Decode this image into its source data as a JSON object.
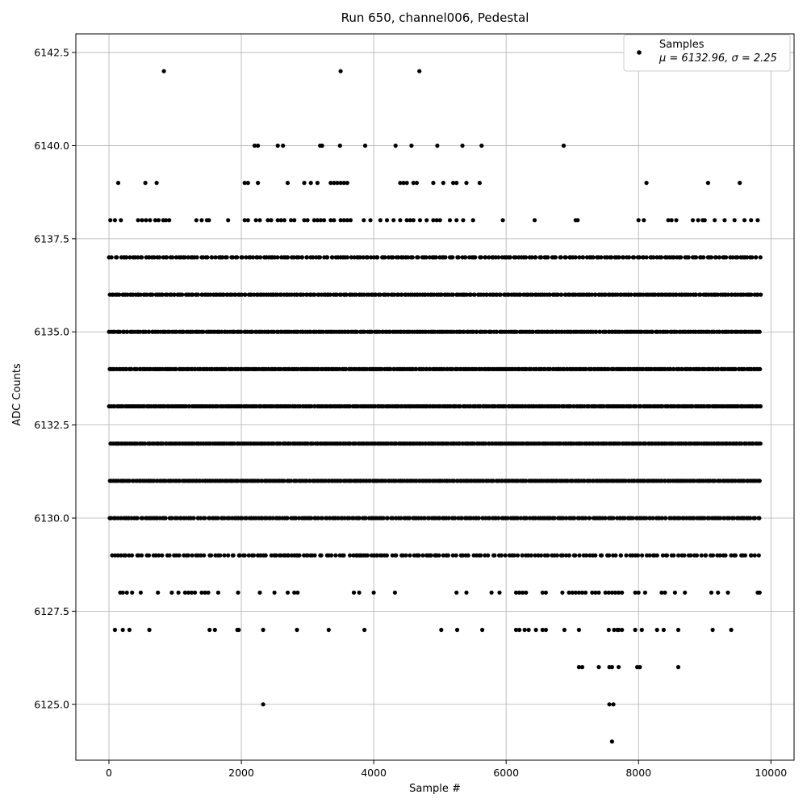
{
  "chart_data": {
    "type": "scatter",
    "title": "Run 650, channel006, Pedestal",
    "xlabel": "Sample #",
    "ylabel": "ADC Counts",
    "xlim": [
      -500,
      10350
    ],
    "ylim": [
      6123.5,
      6143.0
    ],
    "x_ticks": [
      0,
      2000,
      4000,
      6000,
      8000,
      10000
    ],
    "x_tick_labels": [
      "0",
      "2000",
      "4000",
      "6000",
      "8000",
      "10000"
    ],
    "y_ticks": [
      6125.0,
      6127.5,
      6130.0,
      6132.5,
      6135.0,
      6137.5,
      6140.0,
      6142.5
    ],
    "y_tick_labels": [
      "6125.0",
      "6127.5",
      "6130.0",
      "6132.5",
      "6135.0",
      "6137.5",
      "6140.0",
      "6142.5"
    ],
    "grid": true,
    "legend": {
      "placement": "top-right",
      "entries": [
        {
          "label": "Samples",
          "stat_line": "μ = 6132.96, σ = 2.25"
        }
      ]
    },
    "marker_color": "#000000",
    "stats": {
      "mean": 6132.96,
      "sigma": 2.25
    },
    "series": [
      {
        "name": "Samples",
        "x_range": [
          0,
          9850
        ],
        "levels": [
          {
            "y": 6137,
            "count": 260
          },
          {
            "y": 6136,
            "count": 330
          },
          {
            "y": 6135,
            "count": 360
          },
          {
            "y": 6134,
            "count": 380
          },
          {
            "y": 6133,
            "count": 390
          },
          {
            "y": 6132,
            "count": 400
          },
          {
            "y": 6131,
            "count": 380
          },
          {
            "y": 6130,
            "count": 300
          },
          {
            "y": 6129,
            "count": 200
          }
        ],
        "points": [
          [
            830,
            6142
          ],
          [
            3500,
            6142
          ],
          [
            4690,
            6142
          ],
          [
            2200,
            6140
          ],
          [
            2250,
            6140
          ],
          [
            2550,
            6140
          ],
          [
            2630,
            6140
          ],
          [
            3190,
            6140
          ],
          [
            3220,
            6140
          ],
          [
            3490,
            6140
          ],
          [
            3870,
            6140
          ],
          [
            4330,
            6140
          ],
          [
            4570,
            6140
          ],
          [
            4960,
            6140
          ],
          [
            5340,
            6140
          ],
          [
            5630,
            6140
          ],
          [
            6870,
            6140
          ],
          [
            140,
            6139
          ],
          [
            550,
            6139
          ],
          [
            720,
            6139
          ],
          [
            2050,
            6139
          ],
          [
            2100,
            6139
          ],
          [
            2250,
            6139
          ],
          [
            2700,
            6139
          ],
          [
            2950,
            6139
          ],
          [
            3050,
            6139
          ],
          [
            3150,
            6139
          ],
          [
            3350,
            6139
          ],
          [
            3400,
            6139
          ],
          [
            3450,
            6139
          ],
          [
            3500,
            6139
          ],
          [
            3550,
            6139
          ],
          [
            3600,
            6139
          ],
          [
            4400,
            6139
          ],
          [
            4450,
            6139
          ],
          [
            4500,
            6139
          ],
          [
            4600,
            6139
          ],
          [
            4650,
            6139
          ],
          [
            4900,
            6139
          ],
          [
            5050,
            6139
          ],
          [
            5200,
            6139
          ],
          [
            5250,
            6139
          ],
          [
            5400,
            6139
          ],
          [
            5600,
            6139
          ],
          [
            8120,
            6139
          ],
          [
            9050,
            6139
          ],
          [
            9530,
            6139
          ],
          [
            20,
            6138
          ],
          [
            90,
            6138
          ],
          [
            180,
            6138
          ],
          [
            440,
            6138
          ],
          [
            500,
            6138
          ],
          [
            560,
            6138
          ],
          [
            620,
            6138
          ],
          [
            700,
            6138
          ],
          [
            750,
            6138
          ],
          [
            820,
            6138
          ],
          [
            860,
            6138
          ],
          [
            910,
            6138
          ],
          [
            1320,
            6138
          ],
          [
            1400,
            6138
          ],
          [
            1480,
            6138
          ],
          [
            1510,
            6138
          ],
          [
            1800,
            6138
          ],
          [
            2050,
            6138
          ],
          [
            2100,
            6138
          ],
          [
            2220,
            6138
          ],
          [
            2280,
            6138
          ],
          [
            2400,
            6138
          ],
          [
            2450,
            6138
          ],
          [
            2550,
            6138
          ],
          [
            2600,
            6138
          ],
          [
            2650,
            6138
          ],
          [
            2750,
            6138
          ],
          [
            2800,
            6138
          ],
          [
            2950,
            6138
          ],
          [
            3000,
            6138
          ],
          [
            3100,
            6138
          ],
          [
            3150,
            6138
          ],
          [
            3200,
            6138
          ],
          [
            3250,
            6138
          ],
          [
            3350,
            6138
          ],
          [
            3400,
            6138
          ],
          [
            3500,
            6138
          ],
          [
            3550,
            6138
          ],
          [
            3600,
            6138
          ],
          [
            3650,
            6138
          ],
          [
            3850,
            6138
          ],
          [
            3950,
            6138
          ],
          [
            4100,
            6138
          ],
          [
            4200,
            6138
          ],
          [
            4300,
            6138
          ],
          [
            4400,
            6138
          ],
          [
            4500,
            6138
          ],
          [
            4550,
            6138
          ],
          [
            4600,
            6138
          ],
          [
            4700,
            6138
          ],
          [
            4800,
            6138
          ],
          [
            4900,
            6138
          ],
          [
            4950,
            6138
          ],
          [
            5000,
            6138
          ],
          [
            5150,
            6138
          ],
          [
            5250,
            6138
          ],
          [
            5350,
            6138
          ],
          [
            5500,
            6138
          ],
          [
            5950,
            6138
          ],
          [
            6430,
            6138
          ],
          [
            7050,
            6138
          ],
          [
            7080,
            6138
          ],
          [
            8000,
            6138
          ],
          [
            8080,
            6138
          ],
          [
            8450,
            6138
          ],
          [
            8500,
            6138
          ],
          [
            8570,
            6138
          ],
          [
            8820,
            6138
          ],
          [
            8900,
            6138
          ],
          [
            8970,
            6138
          ],
          [
            9000,
            6138
          ],
          [
            9150,
            6138
          ],
          [
            9300,
            6138
          ],
          [
            9450,
            6138
          ],
          [
            9600,
            6138
          ],
          [
            9700,
            6138
          ],
          [
            9800,
            6138
          ],
          [
            1970,
            6129
          ],
          [
            2050,
            6129
          ],
          [
            2250,
            6129
          ],
          [
            2330,
            6129
          ],
          [
            2500,
            6129
          ],
          [
            2600,
            6129
          ],
          [
            2700,
            6129
          ],
          [
            2800,
            6129
          ],
          [
            2850,
            6129
          ],
          [
            3000,
            6129
          ],
          [
            3750,
            6129
          ],
          [
            3800,
            6129
          ],
          [
            3850,
            6129
          ],
          [
            4000,
            6129
          ],
          [
            4050,
            6129
          ],
          [
            4100,
            6129
          ],
          [
            4650,
            6129
          ],
          [
            4800,
            6129
          ],
          [
            4850,
            6129
          ],
          [
            4950,
            6129
          ],
          [
            5100,
            6129
          ],
          [
            170,
            6128
          ],
          [
            210,
            6128
          ],
          [
            270,
            6128
          ],
          [
            350,
            6128
          ],
          [
            480,
            6128
          ],
          [
            740,
            6128
          ],
          [
            950,
            6128
          ],
          [
            1050,
            6128
          ],
          [
            1150,
            6128
          ],
          [
            1200,
            6128
          ],
          [
            1250,
            6128
          ],
          [
            1300,
            6128
          ],
          [
            1400,
            6128
          ],
          [
            1450,
            6128
          ],
          [
            1500,
            6128
          ],
          [
            1650,
            6128
          ],
          [
            1950,
            6128
          ],
          [
            2280,
            6128
          ],
          [
            2500,
            6128
          ],
          [
            2700,
            6128
          ],
          [
            2800,
            6128
          ],
          [
            2850,
            6128
          ],
          [
            3700,
            6128
          ],
          [
            3780,
            6128
          ],
          [
            4000,
            6128
          ],
          [
            4320,
            6128
          ],
          [
            5250,
            6128
          ],
          [
            5400,
            6128
          ],
          [
            5780,
            6128
          ],
          [
            5900,
            6128
          ],
          [
            6150,
            6128
          ],
          [
            6200,
            6128
          ],
          [
            6250,
            6128
          ],
          [
            6300,
            6128
          ],
          [
            6550,
            6128
          ],
          [
            6600,
            6128
          ],
          [
            6850,
            6128
          ],
          [
            6950,
            6128
          ],
          [
            7000,
            6128
          ],
          [
            7050,
            6128
          ],
          [
            7100,
            6128
          ],
          [
            7150,
            6128
          ],
          [
            7200,
            6128
          ],
          [
            7300,
            6128
          ],
          [
            7350,
            6128
          ],
          [
            7400,
            6128
          ],
          [
            7500,
            6128
          ],
          [
            7550,
            6128
          ],
          [
            7600,
            6128
          ],
          [
            7650,
            6128
          ],
          [
            7700,
            6128
          ],
          [
            7750,
            6128
          ],
          [
            7950,
            6128
          ],
          [
            8000,
            6128
          ],
          [
            8100,
            6128
          ],
          [
            8350,
            6128
          ],
          [
            8400,
            6128
          ],
          [
            8550,
            6128
          ],
          [
            8700,
            6128
          ],
          [
            9100,
            6128
          ],
          [
            9200,
            6128
          ],
          [
            9350,
            6128
          ],
          [
            9800,
            6128
          ],
          [
            9830,
            6128
          ],
          [
            90,
            6127
          ],
          [
            210,
            6127
          ],
          [
            310,
            6127
          ],
          [
            610,
            6127
          ],
          [
            1520,
            6127
          ],
          [
            1600,
            6127
          ],
          [
            1940,
            6127
          ],
          [
            1960,
            6127
          ],
          [
            2330,
            6127
          ],
          [
            2840,
            6127
          ],
          [
            3320,
            6127
          ],
          [
            3860,
            6127
          ],
          [
            5020,
            6127
          ],
          [
            5260,
            6127
          ],
          [
            5640,
            6127
          ],
          [
            6150,
            6127
          ],
          [
            6200,
            6127
          ],
          [
            6280,
            6127
          ],
          [
            6340,
            6127
          ],
          [
            6450,
            6127
          ],
          [
            6550,
            6127
          ],
          [
            6600,
            6127
          ],
          [
            6880,
            6127
          ],
          [
            7100,
            6127
          ],
          [
            7550,
            6127
          ],
          [
            7630,
            6127
          ],
          [
            7680,
            6127
          ],
          [
            7700,
            6127
          ],
          [
            7750,
            6127
          ],
          [
            7950,
            6127
          ],
          [
            8050,
            6127
          ],
          [
            8280,
            6127
          ],
          [
            8380,
            6127
          ],
          [
            8600,
            6127
          ],
          [
            9120,
            6127
          ],
          [
            9400,
            6127
          ],
          [
            7100,
            6126
          ],
          [
            7150,
            6126
          ],
          [
            7400,
            6126
          ],
          [
            7560,
            6126
          ],
          [
            7600,
            6126
          ],
          [
            7700,
            6126
          ],
          [
            7980,
            6126
          ],
          [
            8020,
            6126
          ],
          [
            8600,
            6126
          ],
          [
            2330,
            6125
          ],
          [
            7560,
            6125
          ],
          [
            7620,
            6125
          ],
          [
            7600,
            6124
          ]
        ]
      }
    ]
  }
}
